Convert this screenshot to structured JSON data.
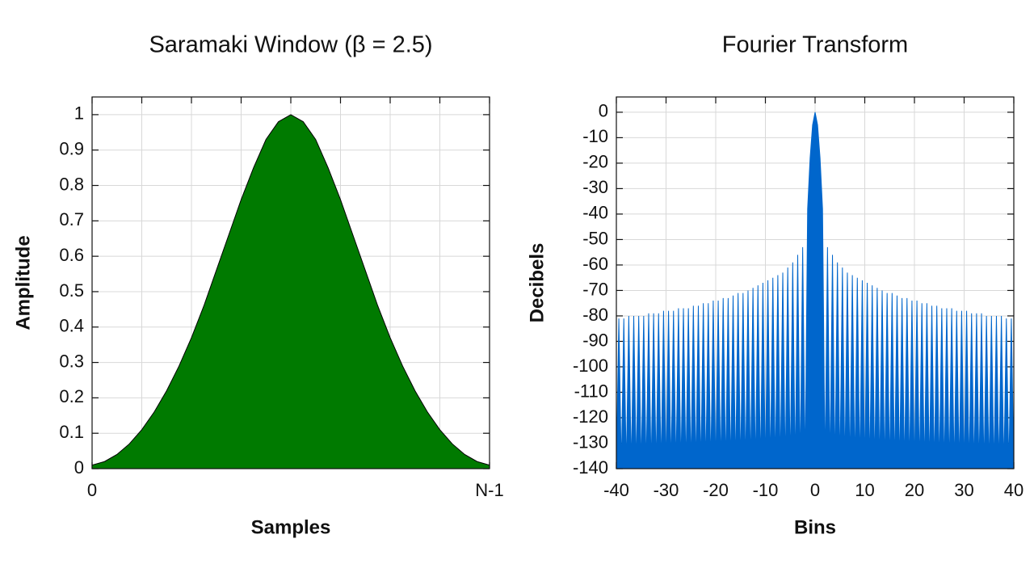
{
  "chart_data": [
    {
      "type": "area",
      "title": "Saramaki Window (β = 2.5)",
      "xlabel": "Samples",
      "ylabel": "Amplitude",
      "color": "#007a00",
      "x": [
        0,
        1,
        2,
        3,
        4,
        5,
        6,
        7,
        8,
        9,
        10,
        11,
        12,
        13,
        14,
        15,
        16,
        17,
        18,
        19,
        20,
        21,
        22,
        23,
        24,
        25,
        26,
        27,
        28,
        29,
        30,
        31,
        32
      ],
      "values": [
        0.01,
        0.02,
        0.04,
        0.07,
        0.11,
        0.16,
        0.22,
        0.29,
        0.37,
        0.46,
        0.56,
        0.66,
        0.76,
        0.85,
        0.93,
        0.98,
        1,
        0.98,
        0.93,
        0.85,
        0.76,
        0.66,
        0.56,
        0.46,
        0.37,
        0.29,
        0.22,
        0.16,
        0.11,
        0.07,
        0.04,
        0.02,
        0.01
      ],
      "xlim": [
        0,
        32
      ],
      "xticks": [
        0,
        {
          "value": 32,
          "label": "N-1"
        }
      ],
      "xgrid": [
        4,
        8,
        12,
        16,
        20,
        24,
        28
      ],
      "ylim": [
        0,
        1.05
      ],
      "yticks": [
        0,
        0.1,
        0.2,
        0.3,
        0.4,
        0.5,
        0.6,
        0.7,
        0.8,
        0.9,
        1
      ],
      "grid": true
    },
    {
      "type": "area",
      "title": "Fourier Transform",
      "xlabel": "Bins",
      "ylabel": "Decibels",
      "color": "#0066cc",
      "x": [
        -40,
        -39.5,
        -39,
        -38.5,
        -38,
        -37.5,
        -37,
        -36.5,
        -36,
        -35.5,
        -35,
        -34.5,
        -34,
        -33.5,
        -33,
        -32.5,
        -32,
        -31.5,
        -31,
        -30.5,
        -30,
        -29.5,
        -29,
        -28.5,
        -28,
        -27.5,
        -27,
        -26.5,
        -26,
        -25.5,
        -25,
        -24.5,
        -24,
        -23.5,
        -23,
        -22.5,
        -22,
        -21.5,
        -21,
        -20.5,
        -20,
        -19.5,
        -19,
        -18.5,
        -18,
        -17.5,
        -17,
        -16.5,
        -16,
        -15.5,
        -15,
        -14.5,
        -14,
        -13.5,
        -13,
        -12.5,
        -12,
        -11.5,
        -11,
        -10.5,
        -10,
        -9.5,
        -9,
        -8.5,
        -8,
        -7.5,
        -7,
        -6.5,
        -6,
        -5.5,
        -5,
        -4.5,
        -4,
        -3.5,
        -3,
        -2.5,
        -2,
        -1.5,
        -1,
        -0.5,
        0,
        0.5,
        1,
        1.5,
        2,
        2.5,
        3,
        3.5,
        4,
        4.5,
        5,
        5.5,
        6,
        6.5,
        7,
        7.5,
        8,
        8.5,
        9,
        9.5,
        10,
        10.5,
        11,
        11.5,
        12,
        12.5,
        13,
        13.5,
        14,
        14.5,
        15,
        15.5,
        16,
        16.5,
        17,
        17.5,
        18,
        18.5,
        19,
        19.5,
        20,
        20.5,
        21,
        21.5,
        22,
        22.5,
        23,
        23.5,
        24,
        24.5,
        25,
        25.5,
        26,
        26.5,
        27,
        27.5,
        28,
        28.5,
        29,
        29.5,
        30,
        30.5,
        31,
        31.5,
        32,
        32.5,
        33,
        33.5,
        34,
        34.5,
        35,
        35.5,
        36,
        36.5,
        37,
        37.5,
        38,
        38.5,
        39,
        39.5,
        40
      ],
      "values": [
        -140,
        -81,
        -140,
        -81,
        -140,
        -80,
        -140,
        -80,
        -140,
        -80,
        -140,
        -80,
        -140,
        -79,
        -140,
        -79,
        -140,
        -79,
        -140,
        -78,
        -140,
        -78,
        -140,
        -78,
        -140,
        -77,
        -140,
        -77,
        -140,
        -77,
        -140,
        -76,
        -140,
        -76,
        -140,
        -75,
        -140,
        -75,
        -140,
        -74,
        -140,
        -74,
        -140,
        -73,
        -140,
        -73,
        -140,
        -72,
        -140,
        -71,
        -140,
        -71,
        -140,
        -70,
        -140,
        -69,
        -140,
        -68,
        -140,
        -67,
        -140,
        -66,
        -140,
        -65,
        -140,
        -64,
        -140,
        -63,
        -140,
        -61,
        -140,
        -59,
        -140,
        -56,
        -140,
        -53,
        -140,
        -38,
        -18,
        -5,
        0,
        -5,
        -18,
        -38,
        -140,
        -53,
        -140,
        -56,
        -140,
        -59,
        -140,
        -61,
        -140,
        -63,
        -140,
        -64,
        -140,
        -65,
        -140,
        -66,
        -140,
        -67,
        -140,
        -68,
        -140,
        -69,
        -140,
        -70,
        -140,
        -71,
        -140,
        -71,
        -140,
        -72,
        -140,
        -73,
        -140,
        -73,
        -140,
        -74,
        -140,
        -74,
        -140,
        -75,
        -140,
        -75,
        -140,
        -76,
        -140,
        -76,
        -140,
        -77,
        -140,
        -77,
        -140,
        -77,
        -140,
        -78,
        -140,
        -78,
        -140,
        -78,
        -140,
        -79,
        -140,
        -79,
        -140,
        -79,
        -140,
        -80,
        -140,
        -80,
        -140,
        -80,
        -140,
        -80,
        -140,
        -81,
        -140,
        -81,
        -140
      ],
      "xlim": [
        -40,
        40
      ],
      "xticks": [
        -40,
        -30,
        -20,
        -10,
        0,
        10,
        20,
        30,
        40
      ],
      "ylim": [
        -140,
        6
      ],
      "yticks": [
        0,
        -10,
        -20,
        -30,
        -40,
        -50,
        -60,
        -70,
        -80,
        -90,
        -100,
        -110,
        -120,
        -130,
        -140
      ],
      "grid": true
    }
  ]
}
